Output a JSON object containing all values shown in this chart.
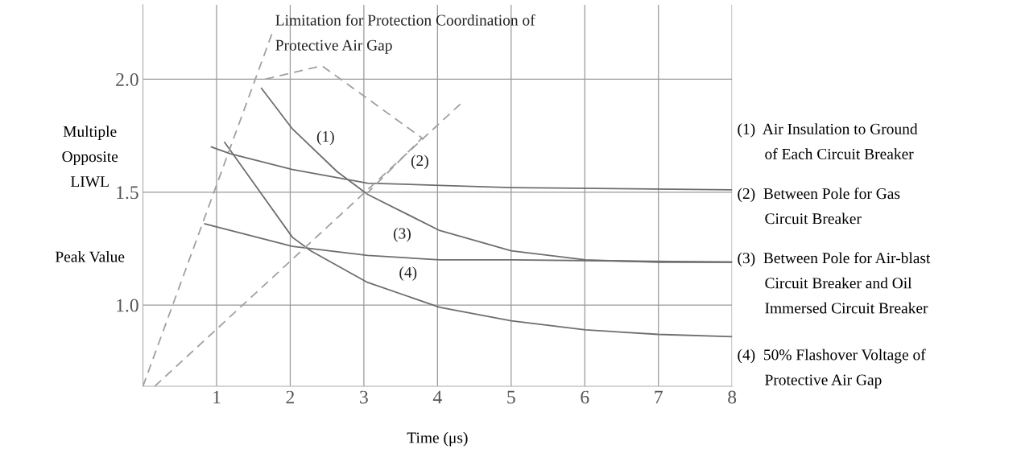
{
  "chart_data": {
    "type": "line",
    "xlabel": "Time (μs)",
    "ylabel": "Multiple\nOpposite\nLIWL\n\n\nPeak Value",
    "xlim": [
      0,
      8
    ],
    "xticks": [
      1,
      2,
      3,
      4,
      5,
      6,
      7,
      8
    ],
    "ylim": [
      0.64,
      2.33
    ],
    "yticks": [
      {
        "value": 1.0,
        "label": "1.0"
      },
      {
        "value": 1.5,
        "label": "1.5"
      },
      {
        "value": 2.0,
        "label": "2.0"
      }
    ],
    "grid": true,
    "marker": "none",
    "series": [
      {
        "name": "(1)",
        "color": "#6e6e6e",
        "x": [
          1.61,
          2.03,
          2.64,
          3.05,
          4.03,
          5,
          6.01,
          7,
          8
        ],
        "values": [
          1.96,
          1.78,
          1.59,
          1.49,
          1.33,
          1.24,
          1.2,
          1.19,
          1.19
        ]
      },
      {
        "name": "(2)",
        "color": "#6e6e6e",
        "x": [
          0.93,
          1.19,
          2.03,
          3.05,
          4.03,
          5,
          8
        ],
        "values": [
          1.7,
          1.67,
          1.6,
          1.54,
          1.53,
          1.52,
          1.51
        ]
      },
      {
        "name": "(3)",
        "color": "#6e6e6e",
        "x": [
          0.84,
          2.03,
          3.05,
          4.03,
          5,
          8
        ],
        "values": [
          1.36,
          1.26,
          1.22,
          1.2,
          1.2,
          1.19
        ]
      },
      {
        "name": "(4)",
        "color": "#6e6e6e",
        "x": [
          1.11,
          2.03,
          2.28,
          3.05,
          4.03,
          5,
          6.01,
          7,
          8
        ],
        "values": [
          1.72,
          1.3,
          1.24,
          1.1,
          0.99,
          0.93,
          0.89,
          0.87,
          0.86
        ]
      },
      {
        "color": "#a0a0a0",
        "line_style": "dashed",
        "x": [
          0,
          1.75
        ],
        "values": [
          0.64,
          2.2
        ]
      },
      {
        "color": "#a0a0a0",
        "line_style": "dashed",
        "x": [
          0.16,
          2.75,
          4.31
        ],
        "values": [
          0.64,
          1.42,
          1.89
        ]
      },
      {
        "color": "#a0a0a0",
        "line_style": "dashed",
        "x": [
          1.66,
          2.43,
          3.79,
          3.03
        ],
        "values": [
          2.0,
          2.06,
          1.74,
          1.49
        ]
      }
    ],
    "annotations": [
      {
        "text": "Limitation for Protection Coordination of\nProtective Air Gap",
        "x": 1.75,
        "y": 2.2
      },
      "(1)  Air Insulation to Ground\n       of Each Circuit Breaker",
      "(2)  Between Pole for Gas\n       Circuit Breaker",
      "(3)  Between Pole for Air-blast\n       Circuit Breaker and Oil\n       Immersed Circuit Breaker",
      "(4)  50% Flashover Voltage of\n       Protective Air Gap"
    ]
  }
}
